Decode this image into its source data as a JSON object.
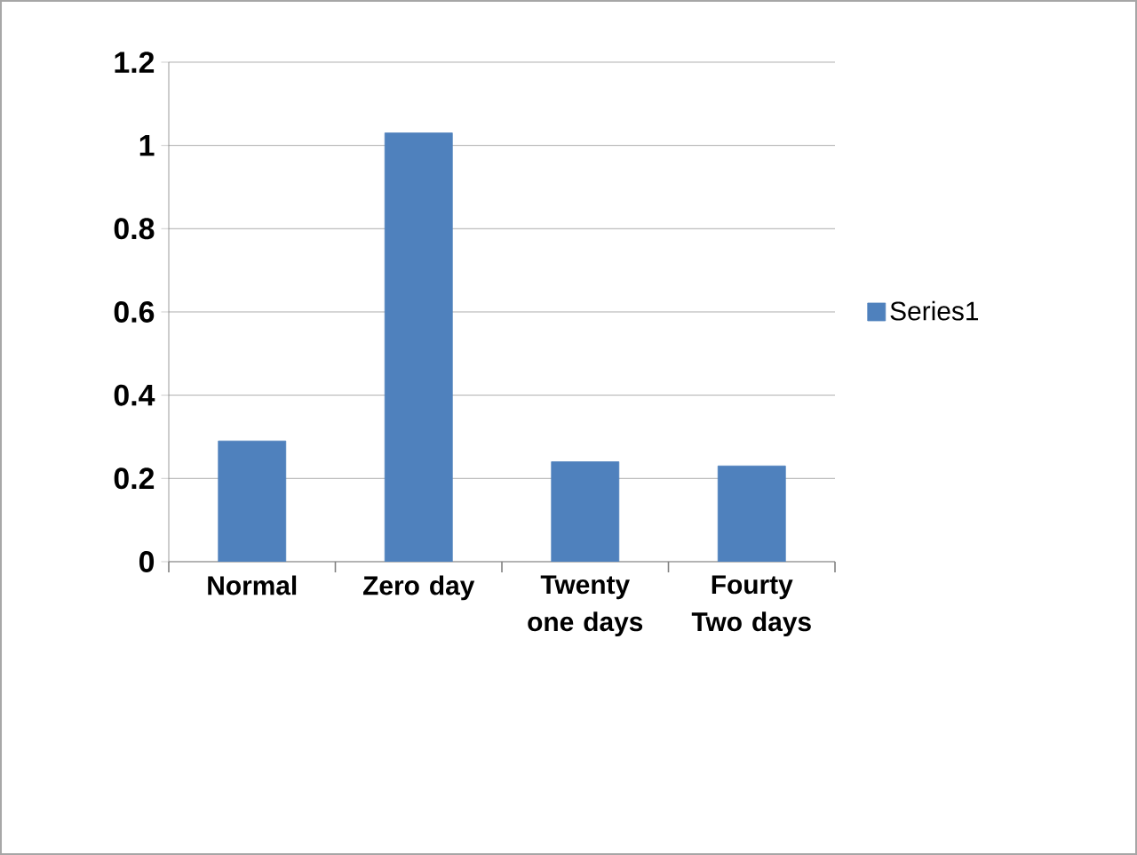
{
  "chart_data": {
    "type": "bar",
    "categories": [
      "Normal",
      "Zero day",
      "Twenty one days",
      "Fourty Two days"
    ],
    "series": [
      {
        "name": "Series1",
        "color": "#4f81bd",
        "values": [
          0.29,
          1.03,
          0.24,
          0.23
        ]
      }
    ],
    "ylim": [
      0,
      1.2
    ],
    "yticks": [
      0,
      0.2,
      0.4,
      0.6,
      0.8,
      1,
      1.2
    ],
    "grid": "y",
    "legend": "right"
  }
}
